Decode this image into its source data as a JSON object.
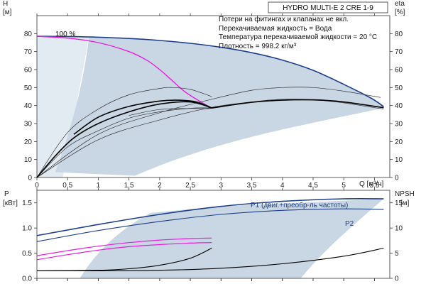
{
  "header": {
    "product": "HYDRO MULTI-E 2 CRE 1-9"
  },
  "notes": [
    "Потери на фитингах и клапанах не вкл.",
    "Перекачиваемая жидкость = Вода",
    "Температура перекачиваемой жидкости = 20 °C",
    "Плотность = 998.2 кг/м³"
  ],
  "colors": {
    "area": "#c9d6e3",
    "area_light": "#e2eaf2",
    "blue": "#1c3f8a",
    "magenta": "#e81ee0",
    "black": "#000000",
    "thin": "#333333"
  },
  "chart_data": [
    {
      "type": "line",
      "name": "top",
      "xlabel": "Q [м³/ч]",
      "ylabel_left": "H",
      "ylabel_left_unit": "[м]",
      "ylabel_right": "eta",
      "ylabel_right_unit": "[%]",
      "xlim": [
        0,
        5.75
      ],
      "ylim": [
        0,
        90
      ],
      "x_ticks": [
        "0",
        "0,5",
        "1",
        "1,5",
        "2",
        "2,5",
        "3",
        "3,5",
        "4",
        "4,5",
        "5",
        "5,5"
      ],
      "x_tick_values": [
        0,
        0.5,
        1,
        1.5,
        2,
        2.5,
        3,
        3.5,
        4,
        4.5,
        5,
        5.5
      ],
      "y_ticks": [
        0,
        10,
        20,
        30,
        40,
        50,
        60,
        70,
        80
      ],
      "grid": false,
      "annotation": "100 %",
      "series": [
        {
          "key": "h_max",
          "x": [
            0,
            0.5,
            1,
            1.5,
            2,
            2.5,
            3,
            3.5,
            4,
            4.5,
            5,
            5.45,
            5.65
          ],
          "y": [
            78.5,
            78.4,
            78.0,
            77.3,
            76.2,
            74.6,
            72.4,
            69.4,
            65.3,
            59.6,
            51.8,
            44.0,
            39.4
          ]
        },
        {
          "key": "h_mag",
          "x": [
            0,
            0.5,
            1,
            1.5,
            1.8,
            2.0,
            2.2,
            2.4,
            2.6,
            2.85
          ],
          "y": [
            78.5,
            77.5,
            75.0,
            70.0,
            65.0,
            60.0,
            54.0,
            48.0,
            43.5,
            38.5
          ]
        },
        {
          "key": "h_thin_low",
          "x": [
            1.5,
            2.0,
            2.5,
            2.85,
            3.5,
            4.0,
            4.5,
            5.0,
            5.65
          ],
          "y": [
            34.5,
            37.8,
            38.4,
            38.5,
            42.0,
            43.5,
            43.2,
            41.5,
            38.0
          ]
        },
        {
          "key": "eta_outer",
          "x": [
            0,
            0.5,
            1,
            1.5,
            2,
            2.2,
            2.5,
            2.85
          ],
          "y": [
            0,
            25,
            38,
            46,
            49.5,
            50,
            49,
            45
          ]
        },
        {
          "key": "eta_mid",
          "x": [
            0.6,
            1,
            1.5,
            2,
            2.3,
            2.6,
            2.85
          ],
          "y": [
            24,
            33.5,
            39.5,
            42.5,
            43,
            42,
            38.7
          ]
        },
        {
          "key": "eta_thin1",
          "x": [
            0,
            1,
            2,
            2.85,
            3.5,
            4.0,
            4.5,
            5.0,
            5.6
          ],
          "y": [
            0,
            24,
            36,
            43.5,
            48.5,
            50,
            50,
            48,
            44.5
          ]
        },
        {
          "key": "eta_thin2",
          "x": [
            0,
            1,
            2,
            2.85,
            3.5,
            4.0,
            4.5,
            5.0,
            5.6
          ],
          "y": [
            0,
            21,
            32,
            39,
            42,
            43,
            43,
            42,
            39
          ]
        },
        {
          "key": "eta_thin3",
          "x": [
            0,
            0.5,
            1,
            1.5,
            2,
            2.5,
            2.85
          ],
          "y": [
            0,
            17,
            26,
            33,
            36.5,
            38.5,
            38.7
          ]
        },
        {
          "key": "h_black_main",
          "x": [
            0,
            0.3,
            0.6,
            1,
            1.5,
            2,
            2.5,
            2.85
          ],
          "y": [
            0,
            12,
            22,
            30,
            36.5,
            40.8,
            42.0,
            38.7
          ]
        },
        {
          "key": "h_black_right",
          "x": [
            2.85,
            3.5,
            4.0,
            4.5,
            5.0,
            5.65
          ],
          "y": [
            38.7,
            41.8,
            43.0,
            43.2,
            42.0,
            38.8
          ]
        }
      ]
    },
    {
      "type": "line",
      "name": "bottom",
      "ylabel_left": "P",
      "ylabel_left_unit": "[кВт]",
      "ylabel_right": "NPSH",
      "ylabel_right_unit": "[м]",
      "xlim": [
        0,
        5.75
      ],
      "ylim": [
        0,
        1.75
      ],
      "y_ticks": [
        "0.0",
        "0.5",
        "1.0",
        "1.5"
      ],
      "y_tick_values": [
        0,
        0.5,
        1.0,
        1.5
      ],
      "y_ticks_right": [
        0,
        5,
        10,
        15
      ],
      "grid": false,
      "series": [
        {
          "key": "P1",
          "name": "P1 (двиг.+преобр-ль частоты)",
          "x": [
            0,
            1,
            2,
            3,
            4,
            5,
            5.65
          ],
          "y": [
            0.85,
            1.07,
            1.27,
            1.43,
            1.53,
            1.58,
            1.58
          ]
        },
        {
          "key": "P2",
          "name": "P2",
          "x": [
            0,
            1,
            2,
            3,
            4,
            5,
            5.65
          ],
          "y": [
            0.73,
            0.95,
            1.13,
            1.27,
            1.35,
            1.38,
            1.37
          ]
        },
        {
          "key": "mag1",
          "x": [
            0,
            0.5,
            1,
            1.5,
            2,
            2.5,
            2.85
          ],
          "y": [
            0.45,
            0.55,
            0.64,
            0.71,
            0.76,
            0.79,
            0.8
          ]
        },
        {
          "key": "mag2",
          "x": [
            0,
            0.5,
            1,
            1.5,
            2,
            2.5,
            2.85
          ],
          "y": [
            0.37,
            0.47,
            0.56,
            0.63,
            0.67,
            0.7,
            0.71
          ]
        },
        {
          "key": "npsh_short",
          "x": [
            0,
            1,
            1.5,
            2,
            2.5,
            2.85
          ],
          "y": [
            0.15,
            0.16,
            0.19,
            0.26,
            0.4,
            0.6
          ]
        },
        {
          "key": "npsh_long",
          "x": [
            0,
            1,
            2,
            3,
            4,
            5,
            5.65
          ],
          "y": [
            0.15,
            0.15,
            0.16,
            0.2,
            0.29,
            0.44,
            0.6
          ]
        }
      ]
    }
  ]
}
